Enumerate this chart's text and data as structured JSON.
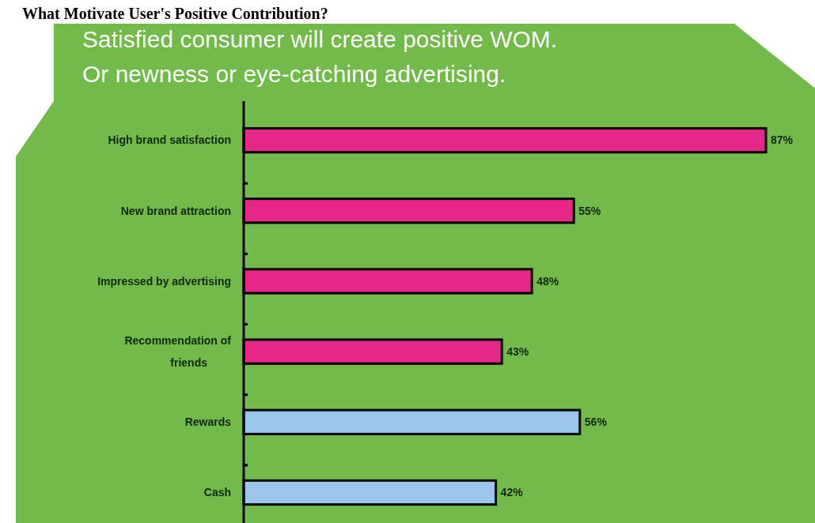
{
  "chart_data": {
    "type": "bar",
    "orientation": "horizontal",
    "title": "What Motivate User's Positive Contribution?",
    "subtitle": "Satisfied consumer will create positive WOM.\nOr newness or eye-catching advertising.",
    "categories": [
      "High brand satisfaction",
      "New brand attraction",
      "Impressed by advertising",
      "Recommendation of friends",
      "Rewards",
      "Cash"
    ],
    "values": [
      87,
      55,
      48,
      43,
      56,
      42
    ],
    "colors": [
      "#e52787",
      "#e52787",
      "#e52787",
      "#e52787",
      "#99c6ea",
      "#99c6ea"
    ],
    "value_labels": [
      "87%",
      "55%",
      "48%",
      "43%",
      "56%",
      "42%"
    ]
  }
}
